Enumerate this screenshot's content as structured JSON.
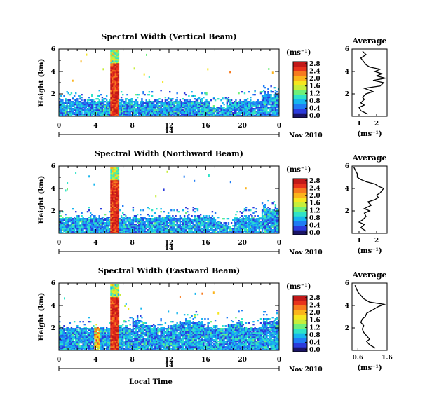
{
  "chart_data": {
    "type": "heatmap",
    "xlabel": "Local Time",
    "date_label": "Nov 2010",
    "day_label": "14",
    "x_ticks": [
      "0",
      "4",
      "8",
      "12",
      "16",
      "20",
      "0"
    ],
    "xlim": [
      0,
      24
    ],
    "ylabel": "Height (km)",
    "y_ticks": [
      "2",
      "4",
      "6"
    ],
    "ylim": [
      0,
      6
    ],
    "colorbar": {
      "unit": "(ms⁻¹)",
      "range": [
        0,
        2.8
      ],
      "ticks": [
        "2.8",
        "2.4",
        "2.0",
        "1.6",
        "1.2",
        "0.8",
        "0.4",
        "0.0"
      ],
      "colors": [
        "#1a1466",
        "#2b3bdb",
        "#1f7cf5",
        "#16b6ee",
        "#2fe3c8",
        "#6ef07a",
        "#c7ee3a",
        "#f6e61f",
        "#fbb41c",
        "#f77a1f",
        "#e8321c",
        "#c21818"
      ]
    },
    "panels": [
      {
        "title": "Spectral Width (Vertical Beam)",
        "profile_title": "Average",
        "profile_xlabel": "(ms⁻¹)",
        "profile_xticks": [
          "1",
          "2"
        ],
        "profile_xlim": [
          0.6,
          2.6
        ],
        "profile": {
          "height": [
            0.2,
            0.5,
            0.8,
            1.0,
            1.2,
            1.5,
            1.7,
            2.0,
            2.2,
            2.5,
            2.7,
            3.0,
            3.2,
            3.4,
            3.6,
            3.8,
            4.0,
            4.2,
            4.4,
            4.6,
            4.8,
            5.0,
            5.2,
            5.5,
            5.8
          ],
          "value": [
            1.5,
            1.1,
            1.0,
            1.3,
            1.1,
            1.3,
            1.2,
            1.4,
            1.8,
            1.3,
            2.2,
            2.4,
            1.8,
            2.5,
            2.0,
            2.3,
            1.9,
            2.2,
            1.6,
            1.4,
            1.3,
            1.2,
            1.1,
            1.4,
            1.2
          ]
        }
      },
      {
        "title": "Spectral Width (Northward Beam)",
        "profile_title": "Average",
        "profile_xlabel": "(ms⁻¹)",
        "profile_xticks": [
          "1",
          "2"
        ],
        "profile_xlim": [
          0.6,
          2.6
        ],
        "profile": {
          "height": [
            0.2,
            0.5,
            0.8,
            1.0,
            1.2,
            1.5,
            1.8,
            2.0,
            2.2,
            2.5,
            2.8,
            3.0,
            3.2,
            3.4,
            3.6,
            3.8,
            4.0,
            4.2,
            4.4,
            4.6,
            4.8,
            5.0,
            5.3,
            5.6,
            5.9
          ],
          "value": [
            1.4,
            1.1,
            1.3,
            1.0,
            1.2,
            1.4,
            1.3,
            1.6,
            1.3,
            1.7,
            1.5,
            1.9,
            2.1,
            2.0,
            2.2,
            2.3,
            2.4,
            2.1,
            1.9,
            1.4,
            1.1,
            0.9,
            0.9,
            0.8,
            0.7
          ]
        }
      },
      {
        "title": "Spectral Width (Eastward Beam)",
        "profile_title": "Average",
        "profile_xlabel": "(ms⁻¹)",
        "profile_xticks": [
          "0.6",
          "1.6"
        ],
        "profile_xlim": [
          0.4,
          1.6
        ],
        "profile": {
          "height": [
            0.2,
            0.5,
            0.8,
            1.0,
            1.3,
            1.6,
            1.9,
            2.2,
            2.5,
            2.8,
            3.0,
            3.3,
            3.6,
            3.9,
            4.1,
            4.3,
            4.6,
            4.9,
            5.2,
            5.5,
            5.8
          ],
          "value": [
            1.2,
            1.0,
            0.9,
            1.0,
            0.9,
            0.8,
            0.75,
            0.8,
            0.7,
            0.75,
            0.85,
            0.9,
            1.1,
            1.3,
            1.5,
            1.0,
            0.8,
            0.7,
            0.6,
            0.55,
            0.5
          ]
        }
      }
    ]
  }
}
